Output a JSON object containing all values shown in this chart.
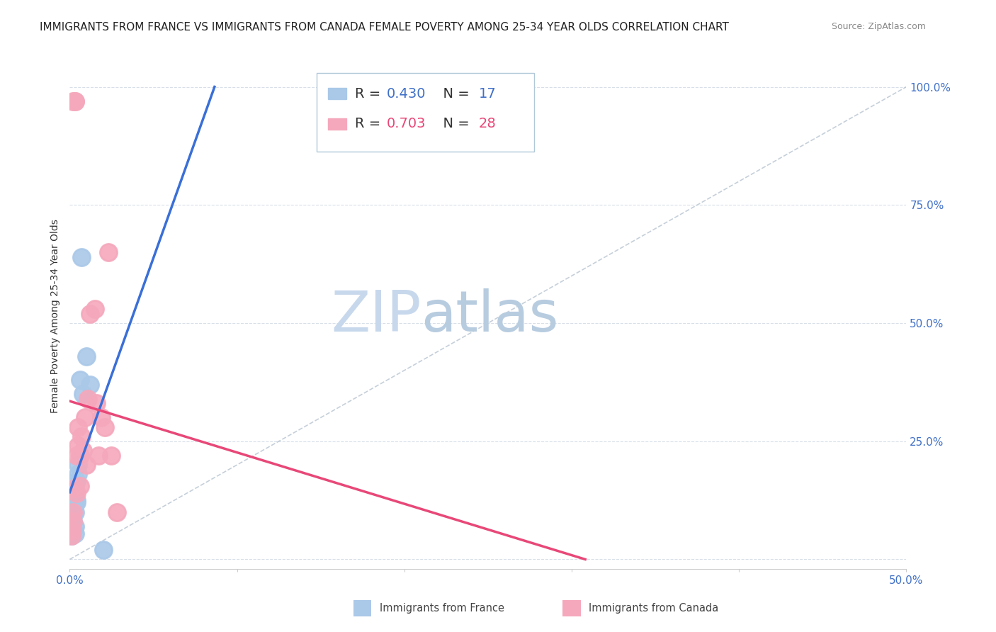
{
  "title": "IMMIGRANTS FROM FRANCE VS IMMIGRANTS FROM CANADA FEMALE POVERTY AMONG 25-34 YEAR OLDS CORRELATION CHART",
  "source": "Source: ZipAtlas.com",
  "ylabel": "Female Poverty Among 25-34 Year Olds",
  "xlim": [
    0,
    0.5
  ],
  "ylim": [
    -0.02,
    1.05
  ],
  "xticks": [
    0.0,
    0.1,
    0.2,
    0.3,
    0.4,
    0.5
  ],
  "yticks": [
    0.0,
    0.25,
    0.5,
    0.75,
    1.0
  ],
  "xtick_labels": [
    "0.0%",
    "",
    "",
    "",
    "",
    "50.0%"
  ],
  "ytick_labels_right": [
    "",
    "25.0%",
    "50.0%",
    "75.0%",
    "100.0%"
  ],
  "france_x": [
    0.001,
    0.002,
    0.002,
    0.003,
    0.003,
    0.003,
    0.004,
    0.004,
    0.004,
    0.005,
    0.005,
    0.006,
    0.007,
    0.008,
    0.01,
    0.012,
    0.02
  ],
  "france_y": [
    0.05,
    0.06,
    0.08,
    0.07,
    0.055,
    0.1,
    0.12,
    0.165,
    0.125,
    0.18,
    0.2,
    0.38,
    0.64,
    0.35,
    0.43,
    0.37,
    0.02
  ],
  "canada_x": [
    0.001,
    0.001,
    0.002,
    0.002,
    0.002,
    0.003,
    0.003,
    0.003,
    0.004,
    0.004,
    0.005,
    0.005,
    0.006,
    0.006,
    0.007,
    0.008,
    0.009,
    0.01,
    0.011,
    0.012,
    0.015,
    0.016,
    0.017,
    0.019,
    0.021,
    0.023,
    0.025,
    0.028
  ],
  "canada_y": [
    0.05,
    0.06,
    0.08,
    0.1,
    0.97,
    0.97,
    0.97,
    0.15,
    0.22,
    0.14,
    0.24,
    0.28,
    0.155,
    0.22,
    0.26,
    0.23,
    0.3,
    0.2,
    0.34,
    0.52,
    0.53,
    0.33,
    0.22,
    0.3,
    0.28,
    0.65,
    0.22,
    0.1
  ],
  "france_R": 0.43,
  "france_N": 17,
  "canada_R": 0.703,
  "canada_N": 28,
  "france_color": "#aac8e8",
  "canada_color": "#f5a8bc",
  "france_line_color": "#3a6fd8",
  "canada_line_color": "#e84878",
  "ref_line_color": "#b8c4d0",
  "watermark_zip_color": "#c8d8ec",
  "watermark_atlas_color": "#b8cce0",
  "grid_color": "#d8dfe8",
  "title_fontsize": 11,
  "source_fontsize": 9,
  "axis_label_fontsize": 10,
  "tick_fontsize": 11,
  "marker_size": 300,
  "marker_lw": 2.0
}
